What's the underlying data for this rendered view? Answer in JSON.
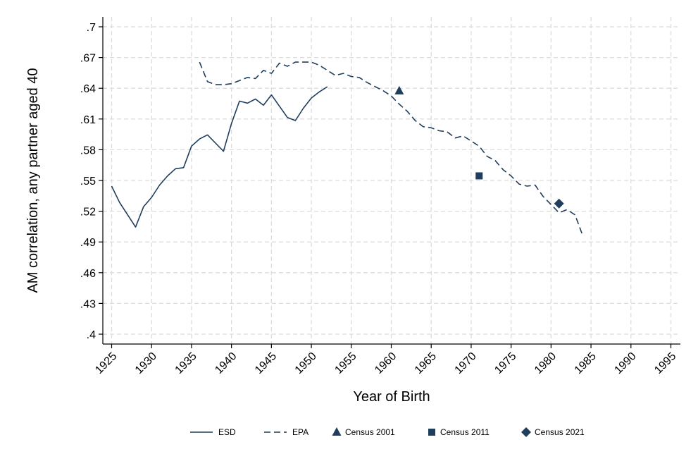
{
  "chart_data": {
    "type": "line",
    "title": "",
    "xlabel": "Year of Birth",
    "ylabel": "AM correlation, any partner aged 40",
    "xlim": [
      1925,
      1995
    ],
    "ylim": [
      0.4,
      0.7
    ],
    "x_ticks": [
      1925,
      1930,
      1935,
      1940,
      1945,
      1950,
      1955,
      1960,
      1965,
      1970,
      1975,
      1980,
      1985,
      1990,
      1995
    ],
    "y_ticks": [
      0.4,
      0.43,
      0.46,
      0.49,
      0.52,
      0.55,
      0.58,
      0.61,
      0.64,
      0.67,
      0.7
    ],
    "y_tick_labels": [
      ".4",
      ".43",
      ".46",
      ".49",
      ".52",
      ".55",
      ".58",
      ".61",
      ".64",
      ".67",
      ".7"
    ],
    "grid": true,
    "legend_position": "bottom",
    "series": [
      {
        "name": "ESD",
        "style": "solid",
        "color": "#1f3d5c",
        "x": [
          1925,
          1926,
          1927,
          1928,
          1929,
          1930,
          1931,
          1932,
          1933,
          1934,
          1935,
          1936,
          1937,
          1938,
          1939,
          1940,
          1941,
          1942,
          1943,
          1944,
          1945,
          1946,
          1947,
          1948,
          1949,
          1950,
          1951,
          1952
        ],
        "values": [
          0.5445,
          0.5285,
          0.5165,
          0.5045,
          0.5245,
          0.5335,
          0.5455,
          0.5545,
          0.5615,
          0.5625,
          0.5835,
          0.5905,
          0.5945,
          0.5865,
          0.5785,
          0.6055,
          0.6275,
          0.6255,
          0.6295,
          0.6235,
          0.6335,
          0.6225,
          0.6115,
          0.6085,
          0.6205,
          0.6305,
          0.6365,
          0.6415
        ]
      },
      {
        "name": "EPA",
        "style": "dashed",
        "color": "#1f3d5c",
        "x": [
          1936,
          1937,
          1938,
          1939,
          1940,
          1941,
          1942,
          1943,
          1944,
          1945,
          1946,
          1947,
          1948,
          1949,
          1950,
          1951,
          1952,
          1953,
          1954,
          1955,
          1956,
          1957,
          1958,
          1959,
          1960,
          1961,
          1962,
          1963,
          1964,
          1965,
          1966,
          1967,
          1968,
          1969,
          1970,
          1971,
          1972,
          1973,
          1974,
          1975,
          1976,
          1977,
          1978,
          1979,
          1980,
          1981,
          1982,
          1983,
          1984
        ],
        "values": [
          0.6655,
          0.6465,
          0.6435,
          0.6435,
          0.6445,
          0.6475,
          0.6505,
          0.6495,
          0.6575,
          0.6545,
          0.6645,
          0.6615,
          0.6655,
          0.6655,
          0.6655,
          0.6625,
          0.6575,
          0.6525,
          0.6545,
          0.6515,
          0.6505,
          0.6455,
          0.6415,
          0.6375,
          0.6325,
          0.6245,
          0.6175,
          0.6085,
          0.6025,
          0.6015,
          0.5985,
          0.5975,
          0.5915,
          0.5935,
          0.5885,
          0.5835,
          0.5735,
          0.5695,
          0.5605,
          0.5545,
          0.5465,
          0.5445,
          0.5455,
          0.5345,
          0.5265,
          0.5185,
          0.5215,
          0.5165,
          0.4955
        ]
      },
      {
        "name": "Census 2001",
        "style": "marker",
        "marker": "triangle",
        "color": "#1f3d5c",
        "x": [
          1961
        ],
        "values": [
          0.6375
        ]
      },
      {
        "name": "Census 2011",
        "style": "marker",
        "marker": "square",
        "color": "#1f3d5c",
        "x": [
          1971
        ],
        "values": [
          0.5545
        ]
      },
      {
        "name": "Census 2021",
        "style": "marker",
        "marker": "diamond",
        "color": "#1f3d5c",
        "x": [
          1981
        ],
        "values": [
          0.5275
        ]
      }
    ]
  }
}
